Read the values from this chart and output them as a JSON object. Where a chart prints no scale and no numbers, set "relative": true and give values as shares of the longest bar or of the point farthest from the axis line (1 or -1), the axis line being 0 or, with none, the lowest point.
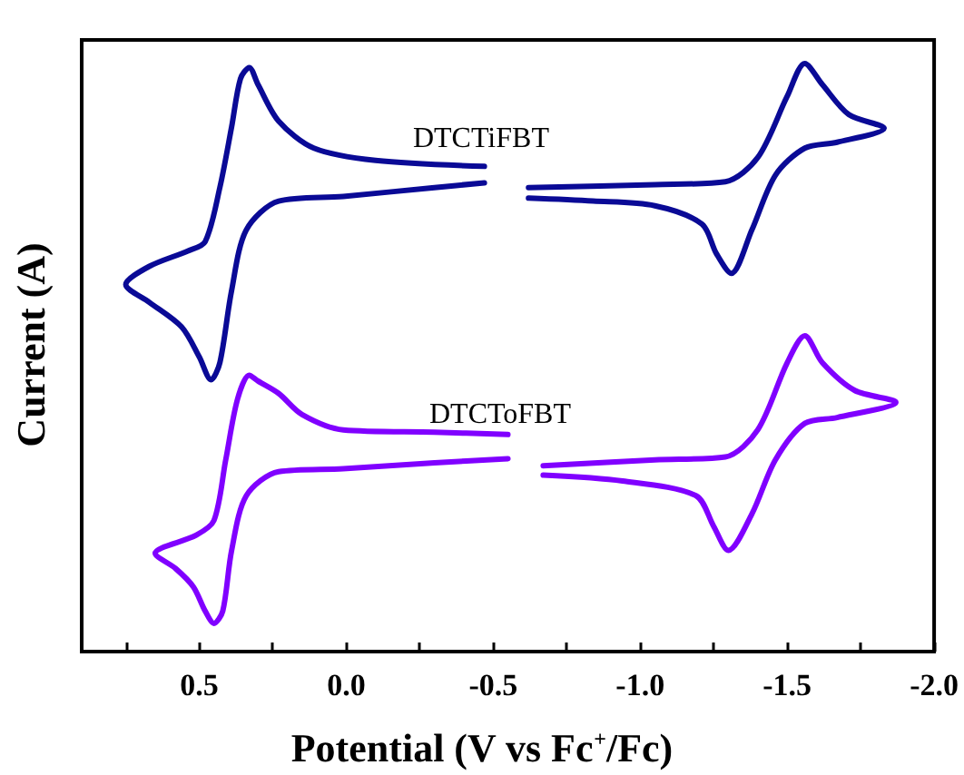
{
  "chart_data": {
    "type": "line",
    "relative": true,
    "xlabel": "Potential (V vs Fc$^{+}$/Fc)",
    "ylabel": "Current (A)",
    "xlim": [
      0.9,
      -2.0
    ],
    "xticks": [
      {
        "value": 0.75,
        "label": null
      },
      0.5,
      {
        "value": 0.25,
        "label": null
      },
      {
        "value": 0,
        "label": "0.0"
      },
      {
        "value": -0.25,
        "label": null
      },
      -0.5,
      {
        "value": -0.75,
        "label": null
      },
      {
        "value": -1,
        "label": "-1.0"
      },
      {
        "value": -1.25,
        "label": null
      },
      -1.5,
      {
        "value": -1.75,
        "label": null
      },
      {
        "value": -2,
        "label": "-2.0"
      }
    ],
    "marker": "none",
    "line_style": "solid",
    "grid": false,
    "legend": false,
    "series": [
      {
        "name": "DTCTiFBT",
        "color": "#0a0a96",
        "x": [
          -0.47,
          -0.1,
          0.11,
          0.23,
          0.3,
          0.33,
          0.36,
          0.39,
          0.43,
          0.48,
          0.54,
          0.67,
          0.75,
          0.67,
          0.56,
          0.5,
          0.46,
          0.43,
          0.39,
          0.34,
          0.23,
          0.01,
          -0.3,
          -0.47,
          -0.55,
          -0.62,
          -1.05,
          -1.29,
          -1.4,
          -1.5,
          -1.56,
          -1.62,
          -1.71,
          -1.83,
          -1.67,
          -1.56,
          -1.46,
          -1.38,
          -1.31,
          -1.26,
          -1.21,
          -1.05,
          -0.84,
          -0.62
        ],
        "values": [
          0.825,
          0.835,
          0.856,
          0.902,
          0.964,
          0.993,
          0.974,
          0.892,
          0.789,
          0.697,
          0.681,
          0.655,
          0.624,
          0.594,
          0.552,
          0.501,
          0.462,
          0.491,
          0.614,
          0.717,
          0.766,
          0.774,
          0.789,
          0.797,
          null,
          0.789,
          0.794,
          0.799,
          0.84,
          0.944,
          1.0,
          0.964,
          0.913,
          0.89,
          0.866,
          0.856,
          0.81,
          0.717,
          0.643,
          0.676,
          0.727,
          0.758,
          0.766,
          0.771
        ]
      },
      {
        "name": "DTCToFBT",
        "color": "#8000ff",
        "x": [
          -0.55,
          -0.3,
          0.01,
          0.15,
          0.23,
          0.3,
          0.33,
          0.37,
          0.41,
          0.45,
          0.51,
          0.65,
          0.58,
          0.52,
          0.48,
          0.45,
          0.42,
          0.39,
          0.34,
          0.23,
          0.01,
          -0.3,
          -0.55,
          -0.61,
          -0.67,
          -1.05,
          -1.29,
          -1.4,
          -1.5,
          -1.56,
          -1.62,
          -1.73,
          -1.87,
          -1.67,
          -1.56,
          -1.46,
          -1.38,
          -1.3,
          -1.25,
          -1.19,
          -0.94,
          -0.67
        ],
        "values": [
          0.369,
          0.373,
          0.377,
          0.403,
          0.439,
          0.46,
          0.47,
          0.429,
          0.326,
          0.223,
          0.198,
          0.167,
          0.141,
          0.11,
          0.069,
          0.048,
          0.069,
          0.172,
          0.265,
          0.306,
          0.311,
          0.321,
          0.328,
          null,
          0.316,
          0.326,
          0.331,
          0.377,
          0.491,
          0.537,
          0.491,
          0.444,
          0.424,
          0.398,
          0.388,
          0.326,
          0.234,
          0.172,
          0.213,
          0.265,
          0.29,
          0.3
        ]
      }
    ]
  }
}
